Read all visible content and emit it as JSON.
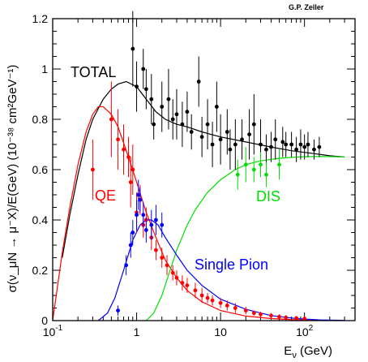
{
  "credit": "G.P. Zeller",
  "chart_data": {
    "type": "scatter",
    "xscale": "log",
    "xlim": [
      0.1,
      400
    ],
    "ylim": [
      0,
      1.2
    ],
    "y_ticks": [
      "0",
      "0.2",
      "0.4",
      "0.6",
      "0.8",
      "1",
      "1.2"
    ],
    "x_ticks": [
      "10^{-1}",
      "1",
      "10",
      "10^{2}"
    ],
    "xlabel_main": "E",
    "xlabel_sub": "ν",
    "xlabel_unit": " (GeV)",
    "ylabel": "σ(ν_μN → μ⁻X)/E(GeV)   (10⁻³⁸ cm²GeV⁻¹)",
    "colors": {
      "total": "#000000",
      "qe": "#ff0000",
      "dis": "#00dd00",
      "pion": "#0000ff"
    },
    "series": [
      {
        "name": "TOTAL",
        "curve": [
          [
            0.13,
            0.25
          ],
          [
            0.16,
            0.42
          ],
          [
            0.2,
            0.58
          ],
          [
            0.25,
            0.72
          ],
          [
            0.3,
            0.8
          ],
          [
            0.4,
            0.88
          ],
          [
            0.5,
            0.92
          ],
          [
            0.6,
            0.94
          ],
          [
            0.75,
            0.95
          ],
          [
            1.0,
            0.93
          ],
          [
            1.3,
            0.88
          ],
          [
            1.7,
            0.83
          ],
          [
            2.2,
            0.8
          ],
          [
            3,
            0.78
          ],
          [
            4,
            0.77
          ],
          [
            6,
            0.75
          ],
          [
            10,
            0.73
          ],
          [
            20,
            0.71
          ],
          [
            40,
            0.69
          ],
          [
            70,
            0.675
          ],
          [
            120,
            0.665
          ],
          [
            200,
            0.655
          ],
          [
            300,
            0.65
          ]
        ],
        "points": [
          [
            0.9,
            1.08,
            0.15
          ],
          [
            1.0,
            0.93,
            0.1
          ],
          [
            1.2,
            1.0,
            0.08
          ],
          [
            1.3,
            0.92,
            0.08
          ],
          [
            1.5,
            0.88,
            0.1
          ],
          [
            1.6,
            0.78,
            0.06
          ],
          [
            2.0,
            0.85,
            0.1
          ],
          [
            2.4,
            0.88,
            0.12
          ],
          [
            2.7,
            0.8,
            0.08
          ],
          [
            3.0,
            0.82,
            0.1
          ],
          [
            3.5,
            0.78,
            0.09
          ],
          [
            4.0,
            0.83,
            0.08
          ],
          [
            4.5,
            0.75,
            0.07
          ],
          [
            5.5,
            0.95,
            0.1
          ],
          [
            6,
            0.73,
            0.08
          ],
          [
            7,
            0.78,
            0.1
          ],
          [
            8,
            0.7,
            0.09
          ],
          [
            9,
            0.85,
            0.1
          ],
          [
            10,
            0.72,
            0.1
          ],
          [
            12,
            0.75,
            0.09
          ],
          [
            13,
            0.68,
            0.08
          ],
          [
            15,
            0.7,
            0.1
          ],
          [
            18,
            0.72,
            0.08
          ],
          [
            22,
            0.74,
            0.1
          ],
          [
            25,
            0.78,
            0.12
          ],
          [
            30,
            0.7,
            0.1
          ],
          [
            35,
            0.68,
            0.06
          ],
          [
            40,
            0.69,
            0.06
          ],
          [
            45,
            0.72,
            0.08
          ],
          [
            55,
            0.71,
            0.06
          ],
          [
            60,
            0.7,
            0.05
          ],
          [
            70,
            0.7,
            0.05
          ],
          [
            80,
            0.68,
            0.05
          ],
          [
            90,
            0.7,
            0.06
          ],
          [
            100,
            0.69,
            0.05
          ],
          [
            110,
            0.7,
            0.05
          ],
          [
            130,
            0.68,
            0.04
          ],
          [
            150,
            0.69,
            0.04
          ]
        ]
      },
      {
        "name": "QE",
        "curve": [
          [
            0.1,
            0.0
          ],
          [
            0.13,
            0.27
          ],
          [
            0.16,
            0.45
          ],
          [
            0.2,
            0.62
          ],
          [
            0.25,
            0.75
          ],
          [
            0.3,
            0.82
          ],
          [
            0.35,
            0.85
          ],
          [
            0.4,
            0.85
          ],
          [
            0.5,
            0.82
          ],
          [
            0.6,
            0.77
          ],
          [
            0.8,
            0.65
          ],
          [
            1.0,
            0.55
          ],
          [
            1.3,
            0.43
          ],
          [
            1.7,
            0.33
          ],
          [
            2.2,
            0.24
          ],
          [
            3,
            0.17
          ],
          [
            4,
            0.12
          ],
          [
            6,
            0.075
          ],
          [
            10,
            0.04
          ],
          [
            20,
            0.018
          ],
          [
            40,
            0.008
          ],
          [
            80,
            0.003
          ],
          [
            150,
            0.001
          ]
        ],
        "points": [
          [
            0.3,
            0.6,
            0.12
          ],
          [
            0.5,
            0.8,
            0.15
          ],
          [
            0.6,
            0.72,
            0.12
          ],
          [
            0.7,
            0.68,
            0.1
          ],
          [
            0.8,
            0.65,
            0.08
          ],
          [
            0.85,
            0.55,
            0.1
          ],
          [
            0.9,
            0.6,
            0.1
          ],
          [
            1.0,
            0.43,
            0.08
          ],
          [
            1.1,
            0.48,
            0.06
          ],
          [
            1.2,
            0.38,
            0.05
          ],
          [
            1.3,
            0.4,
            0.05
          ],
          [
            1.5,
            0.33,
            0.05
          ],
          [
            1.7,
            0.28,
            0.04
          ],
          [
            2.0,
            0.25,
            0.04
          ],
          [
            2.3,
            0.22,
            0.04
          ],
          [
            2.7,
            0.19,
            0.03
          ],
          [
            3,
            0.17,
            0.03
          ],
          [
            3.5,
            0.15,
            0.03
          ],
          [
            4,
            0.14,
            0.03
          ],
          [
            5,
            0.12,
            0.03
          ],
          [
            6,
            0.1,
            0.03
          ],
          [
            7,
            0.09,
            0.02
          ],
          [
            8,
            0.08,
            0.02
          ],
          [
            10,
            0.07,
            0.02
          ],
          [
            12,
            0.06,
            0.02
          ],
          [
            15,
            0.05,
            0.02
          ],
          [
            20,
            0.04,
            0.015
          ],
          [
            25,
            0.03,
            0.01
          ],
          [
            30,
            0.025,
            0.01
          ],
          [
            40,
            0.02,
            0.01
          ],
          [
            50,
            0.015,
            0.01
          ],
          [
            60,
            0.012,
            0.01
          ],
          [
            80,
            0.01,
            0.005
          ],
          [
            100,
            0.008,
            0.005
          ]
        ]
      },
      {
        "name": "DIS",
        "curve": [
          [
            1.3,
            0.0
          ],
          [
            1.6,
            0.03
          ],
          [
            2.0,
            0.1
          ],
          [
            2.5,
            0.2
          ],
          [
            3,
            0.28
          ],
          [
            4,
            0.38
          ],
          [
            5,
            0.44
          ],
          [
            7,
            0.51
          ],
          [
            10,
            0.56
          ],
          [
            15,
            0.6
          ],
          [
            20,
            0.62
          ],
          [
            30,
            0.635
          ],
          [
            50,
            0.645
          ],
          [
            80,
            0.65
          ],
          [
            120,
            0.652
          ],
          [
            200,
            0.652
          ],
          [
            300,
            0.65
          ]
        ],
        "points": [
          [
            16,
            0.58,
            0.06
          ],
          [
            20,
            0.62,
            0.07
          ],
          [
            25,
            0.6,
            0.05
          ],
          [
            30,
            0.62,
            0.05
          ],
          [
            35,
            0.58,
            0.05
          ],
          [
            50,
            0.62,
            0.06
          ]
        ]
      },
      {
        "name": "Single Pion",
        "curve": [
          [
            0.35,
            0.0
          ],
          [
            0.45,
            0.03
          ],
          [
            0.55,
            0.09
          ],
          [
            0.7,
            0.2
          ],
          [
            0.9,
            0.32
          ],
          [
            1.1,
            0.38
          ],
          [
            1.3,
            0.4
          ],
          [
            1.5,
            0.4
          ],
          [
            1.8,
            0.38
          ],
          [
            2.2,
            0.33
          ],
          [
            3,
            0.26
          ],
          [
            4,
            0.2
          ],
          [
            6,
            0.14
          ],
          [
            10,
            0.085
          ],
          [
            20,
            0.045
          ],
          [
            40,
            0.02
          ],
          [
            80,
            0.008
          ],
          [
            150,
            0.003
          ],
          [
            300,
            0.001
          ]
        ],
        "points": [
          [
            0.6,
            0.04,
            0.02
          ],
          [
            0.75,
            0.22,
            0.04
          ],
          [
            0.85,
            0.3,
            0.05
          ],
          [
            0.9,
            0.35,
            0.05
          ],
          [
            1.0,
            0.42,
            0.06
          ],
          [
            1.05,
            0.5,
            0.06
          ],
          [
            1.1,
            0.48,
            0.05
          ],
          [
            1.2,
            0.42,
            0.05
          ],
          [
            1.3,
            0.36,
            0.05
          ],
          [
            1.5,
            0.38,
            0.06
          ],
          [
            1.7,
            0.4,
            0.06
          ],
          [
            2.0,
            0.38,
            0.05
          ]
        ]
      }
    ]
  }
}
